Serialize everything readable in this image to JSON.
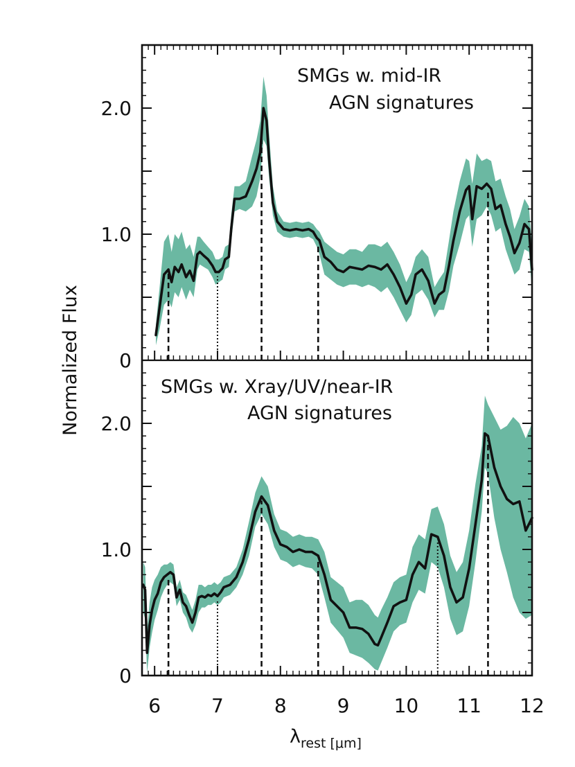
{
  "chart_data": {
    "type": "line",
    "xlabel": {
      "symbol": "λ",
      "subscript": "rest",
      "unit": " [μm]"
    },
    "ylabel": "Normalized Flux",
    "xlim": [
      5.8,
      12.0
    ],
    "x_ticks": [
      "6",
      "7",
      "8",
      "9",
      "10",
      "11",
      "12"
    ],
    "y_ticks": [
      "0",
      "1.0",
      "2.0"
    ],
    "band_color": "#6bb8a2",
    "line_color": "#111111",
    "panels": [
      {
        "annotation": [
          "SMGs w. mid-IR",
          "AGN signatures"
        ],
        "ylim": [
          0,
          2.5
        ],
        "series": [
          {
            "x": [
              6.02,
              6.08,
              6.15,
              6.22,
              6.27,
              6.32,
              6.38,
              6.43,
              6.5,
              6.56,
              6.62,
              6.68,
              6.72,
              6.78,
              6.85,
              6.92,
              6.97,
              7.02,
              7.08,
              7.12,
              7.18,
              7.22,
              7.27,
              7.35,
              7.45,
              7.55,
              7.62,
              7.68,
              7.73,
              7.78,
              7.82,
              7.88,
              7.95,
              8.05,
              8.15,
              8.25,
              8.35,
              8.45,
              8.52,
              8.58,
              8.62,
              8.7,
              8.8,
              8.9,
              9.0,
              9.1,
              9.2,
              9.3,
              9.4,
              9.5,
              9.6,
              9.7,
              9.8,
              9.9,
              10.0,
              10.08,
              10.15,
              10.25,
              10.35,
              10.45,
              10.52,
              10.6,
              10.68,
              10.75,
              10.85,
              10.95,
              11.0,
              11.05,
              11.12,
              11.2,
              11.28,
              11.35,
              11.42,
              11.5,
              11.58,
              11.65,
              11.72,
              11.8,
              11.88,
              11.95,
              12.0
            ],
            "y": [
              0.2,
              0.42,
              0.68,
              0.72,
              0.62,
              0.74,
              0.7,
              0.76,
              0.66,
              0.71,
              0.63,
              0.84,
              0.86,
              0.83,
              0.8,
              0.75,
              0.7,
              0.7,
              0.73,
              0.8,
              0.82,
              1.05,
              1.28,
              1.28,
              1.3,
              1.42,
              1.52,
              1.65,
              2.0,
              1.9,
              1.6,
              1.25,
              1.1,
              1.04,
              1.03,
              1.04,
              1.03,
              1.04,
              1.02,
              0.97,
              0.95,
              0.82,
              0.78,
              0.72,
              0.7,
              0.74,
              0.73,
              0.72,
              0.75,
              0.74,
              0.72,
              0.76,
              0.68,
              0.58,
              0.45,
              0.52,
              0.68,
              0.72,
              0.63,
              0.45,
              0.52,
              0.55,
              0.75,
              0.95,
              1.18,
              1.35,
              1.38,
              1.12,
              1.38,
              1.36,
              1.4,
              1.36,
              1.2,
              1.23,
              1.08,
              0.98,
              0.85,
              0.93,
              1.08,
              1.04,
              0.72
            ],
            "y_low": [
              0.12,
              0.25,
              0.44,
              0.48,
              0.42,
              0.54,
              0.5,
              0.58,
              0.48,
              0.56,
              0.5,
              0.72,
              0.76,
              0.74,
              0.72,
              0.66,
              0.6,
              0.62,
              0.64,
              0.72,
              0.74,
              0.95,
              1.18,
              1.2,
              1.18,
              1.22,
              1.3,
              1.45,
              1.75,
              1.7,
              1.45,
              1.15,
              1.02,
              0.98,
              0.97,
              0.98,
              0.97,
              0.98,
              0.96,
              0.9,
              0.84,
              0.68,
              0.64,
              0.6,
              0.58,
              0.6,
              0.6,
              0.58,
              0.6,
              0.58,
              0.54,
              0.58,
              0.5,
              0.4,
              0.3,
              0.36,
              0.52,
              0.56,
              0.48,
              0.34,
              0.4,
              0.4,
              0.55,
              0.75,
              0.92,
              1.12,
              1.15,
              0.9,
              1.12,
              1.15,
              1.22,
              1.15,
              1.02,
              1.05,
              0.88,
              0.78,
              0.68,
              0.72,
              0.88,
              0.86,
              0.55
            ],
            "y_high": [
              0.28,
              0.58,
              0.94,
              1.0,
              0.86,
              1.0,
              0.96,
              1.02,
              0.88,
              0.92,
              0.82,
              0.98,
              0.98,
              0.94,
              0.9,
              0.86,
              0.8,
              0.8,
              0.82,
              0.9,
              0.92,
              1.16,
              1.38,
              1.38,
              1.42,
              1.62,
              1.75,
              1.9,
              2.25,
              2.1,
              1.8,
              1.38,
              1.18,
              1.1,
              1.09,
              1.1,
              1.09,
              1.1,
              1.08,
              1.04,
              1.02,
              0.94,
              0.9,
              0.86,
              0.84,
              0.88,
              0.88,
              0.86,
              0.92,
              0.92,
              0.9,
              0.94,
              0.86,
              0.76,
              0.62,
              0.7,
              0.82,
              0.88,
              0.82,
              0.58,
              0.64,
              0.7,
              0.95,
              1.18,
              1.42,
              1.6,
              1.58,
              1.4,
              1.64,
              1.58,
              1.6,
              1.58,
              1.42,
              1.44,
              1.3,
              1.2,
              1.04,
              1.14,
              1.28,
              1.22,
              0.9
            ]
          }
        ],
        "dashed_lines": [
          6.22,
          7.7,
          8.6,
          11.3
        ],
        "dotted_lines": [
          7.0
        ]
      },
      {
        "annotation": [
          "SMGs w. Xray/UV/near-IR",
          "AGN signatures"
        ],
        "ylim": [
          0,
          2.5
        ],
        "series": [
          {
            "x": [
              5.82,
              5.85,
              5.88,
              5.92,
              5.96,
              6.0,
              6.05,
              6.1,
              6.15,
              6.2,
              6.25,
              6.3,
              6.35,
              6.4,
              6.45,
              6.5,
              6.55,
              6.6,
              6.65,
              6.7,
              6.75,
              6.8,
              6.85,
              6.9,
              6.95,
              7.0,
              7.05,
              7.1,
              7.2,
              7.3,
              7.4,
              7.5,
              7.6,
              7.7,
              7.8,
              7.9,
              8.0,
              8.1,
              8.2,
              8.3,
              8.4,
              8.5,
              8.6,
              8.7,
              8.8,
              8.9,
              9.0,
              9.1,
              9.2,
              9.3,
              9.4,
              9.5,
              9.55,
              9.6,
              9.7,
              9.8,
              9.9,
              10.0,
              10.1,
              10.2,
              10.3,
              10.4,
              10.5,
              10.6,
              10.7,
              10.8,
              10.9,
              11.0,
              11.1,
              11.2,
              11.25,
              11.3,
              11.4,
              11.5,
              11.6,
              11.7,
              11.8,
              11.9,
              12.0
            ],
            "y": [
              0.72,
              0.68,
              0.18,
              0.4,
              0.52,
              0.6,
              0.65,
              0.74,
              0.78,
              0.8,
              0.82,
              0.8,
              0.62,
              0.68,
              0.58,
              0.55,
              0.48,
              0.42,
              0.5,
              0.62,
              0.63,
              0.62,
              0.64,
              0.63,
              0.65,
              0.63,
              0.66,
              0.7,
              0.72,
              0.78,
              0.9,
              1.08,
              1.3,
              1.42,
              1.35,
              1.15,
              1.04,
              1.02,
              0.98,
              1.0,
              0.98,
              0.98,
              0.95,
              0.8,
              0.6,
              0.55,
              0.5,
              0.38,
              0.38,
              0.37,
              0.33,
              0.25,
              0.24,
              0.3,
              0.42,
              0.55,
              0.58,
              0.6,
              0.8,
              0.9,
              0.85,
              1.12,
              1.1,
              0.95,
              0.7,
              0.58,
              0.62,
              0.85,
              1.2,
              1.55,
              1.92,
              1.9,
              1.65,
              1.5,
              1.4,
              1.36,
              1.38,
              1.15,
              1.25
            ],
            "y_low": [
              0.5,
              0.45,
              0.02,
              0.22,
              0.34,
              0.44,
              0.52,
              0.62,
              0.68,
              0.72,
              0.74,
              0.72,
              0.55,
              0.6,
              0.5,
              0.46,
              0.38,
              0.34,
              0.4,
              0.5,
              0.54,
              0.54,
              0.56,
              0.56,
              0.58,
              0.56,
              0.58,
              0.62,
              0.64,
              0.7,
              0.8,
              0.95,
              1.18,
              1.28,
              1.2,
              1.02,
              0.92,
              0.9,
              0.86,
              0.88,
              0.86,
              0.85,
              0.8,
              0.62,
              0.42,
              0.36,
              0.3,
              0.18,
              0.16,
              0.14,
              0.1,
              0.05,
              0.04,
              0.1,
              0.22,
              0.35,
              0.4,
              0.42,
              0.58,
              0.68,
              0.65,
              0.9,
              0.86,
              0.7,
              0.45,
              0.32,
              0.35,
              0.55,
              0.9,
              1.3,
              1.65,
              1.6,
              1.25,
              1.0,
              0.82,
              0.62,
              0.5,
              0.45,
              0.48
            ],
            "y_high": [
              0.9,
              0.86,
              0.35,
              0.58,
              0.7,
              0.76,
              0.8,
              0.86,
              0.88,
              0.88,
              0.9,
              0.88,
              0.7,
              0.76,
              0.66,
              0.64,
              0.58,
              0.52,
              0.6,
              0.72,
              0.72,
              0.7,
              0.72,
              0.72,
              0.74,
              0.72,
              0.74,
              0.78,
              0.8,
              0.86,
              1.0,
              1.22,
              1.45,
              1.58,
              1.5,
              1.28,
              1.16,
              1.14,
              1.1,
              1.12,
              1.1,
              1.1,
              1.08,
              0.98,
              0.78,
              0.74,
              0.7,
              0.58,
              0.6,
              0.6,
              0.56,
              0.48,
              0.46,
              0.52,
              0.62,
              0.74,
              0.78,
              0.8,
              1.02,
              1.12,
              1.08,
              1.32,
              1.34,
              1.2,
              0.95,
              0.82,
              0.9,
              1.15,
              1.52,
              1.82,
              2.22,
              2.15,
              2.05,
              1.95,
              1.98,
              2.05,
              2.0,
              1.88,
              2.0
            ]
          }
        ],
        "dashed_lines": [
          6.22,
          7.7,
          8.6,
          11.3
        ],
        "dotted_lines": [
          7.0,
          10.5
        ]
      }
    ]
  }
}
